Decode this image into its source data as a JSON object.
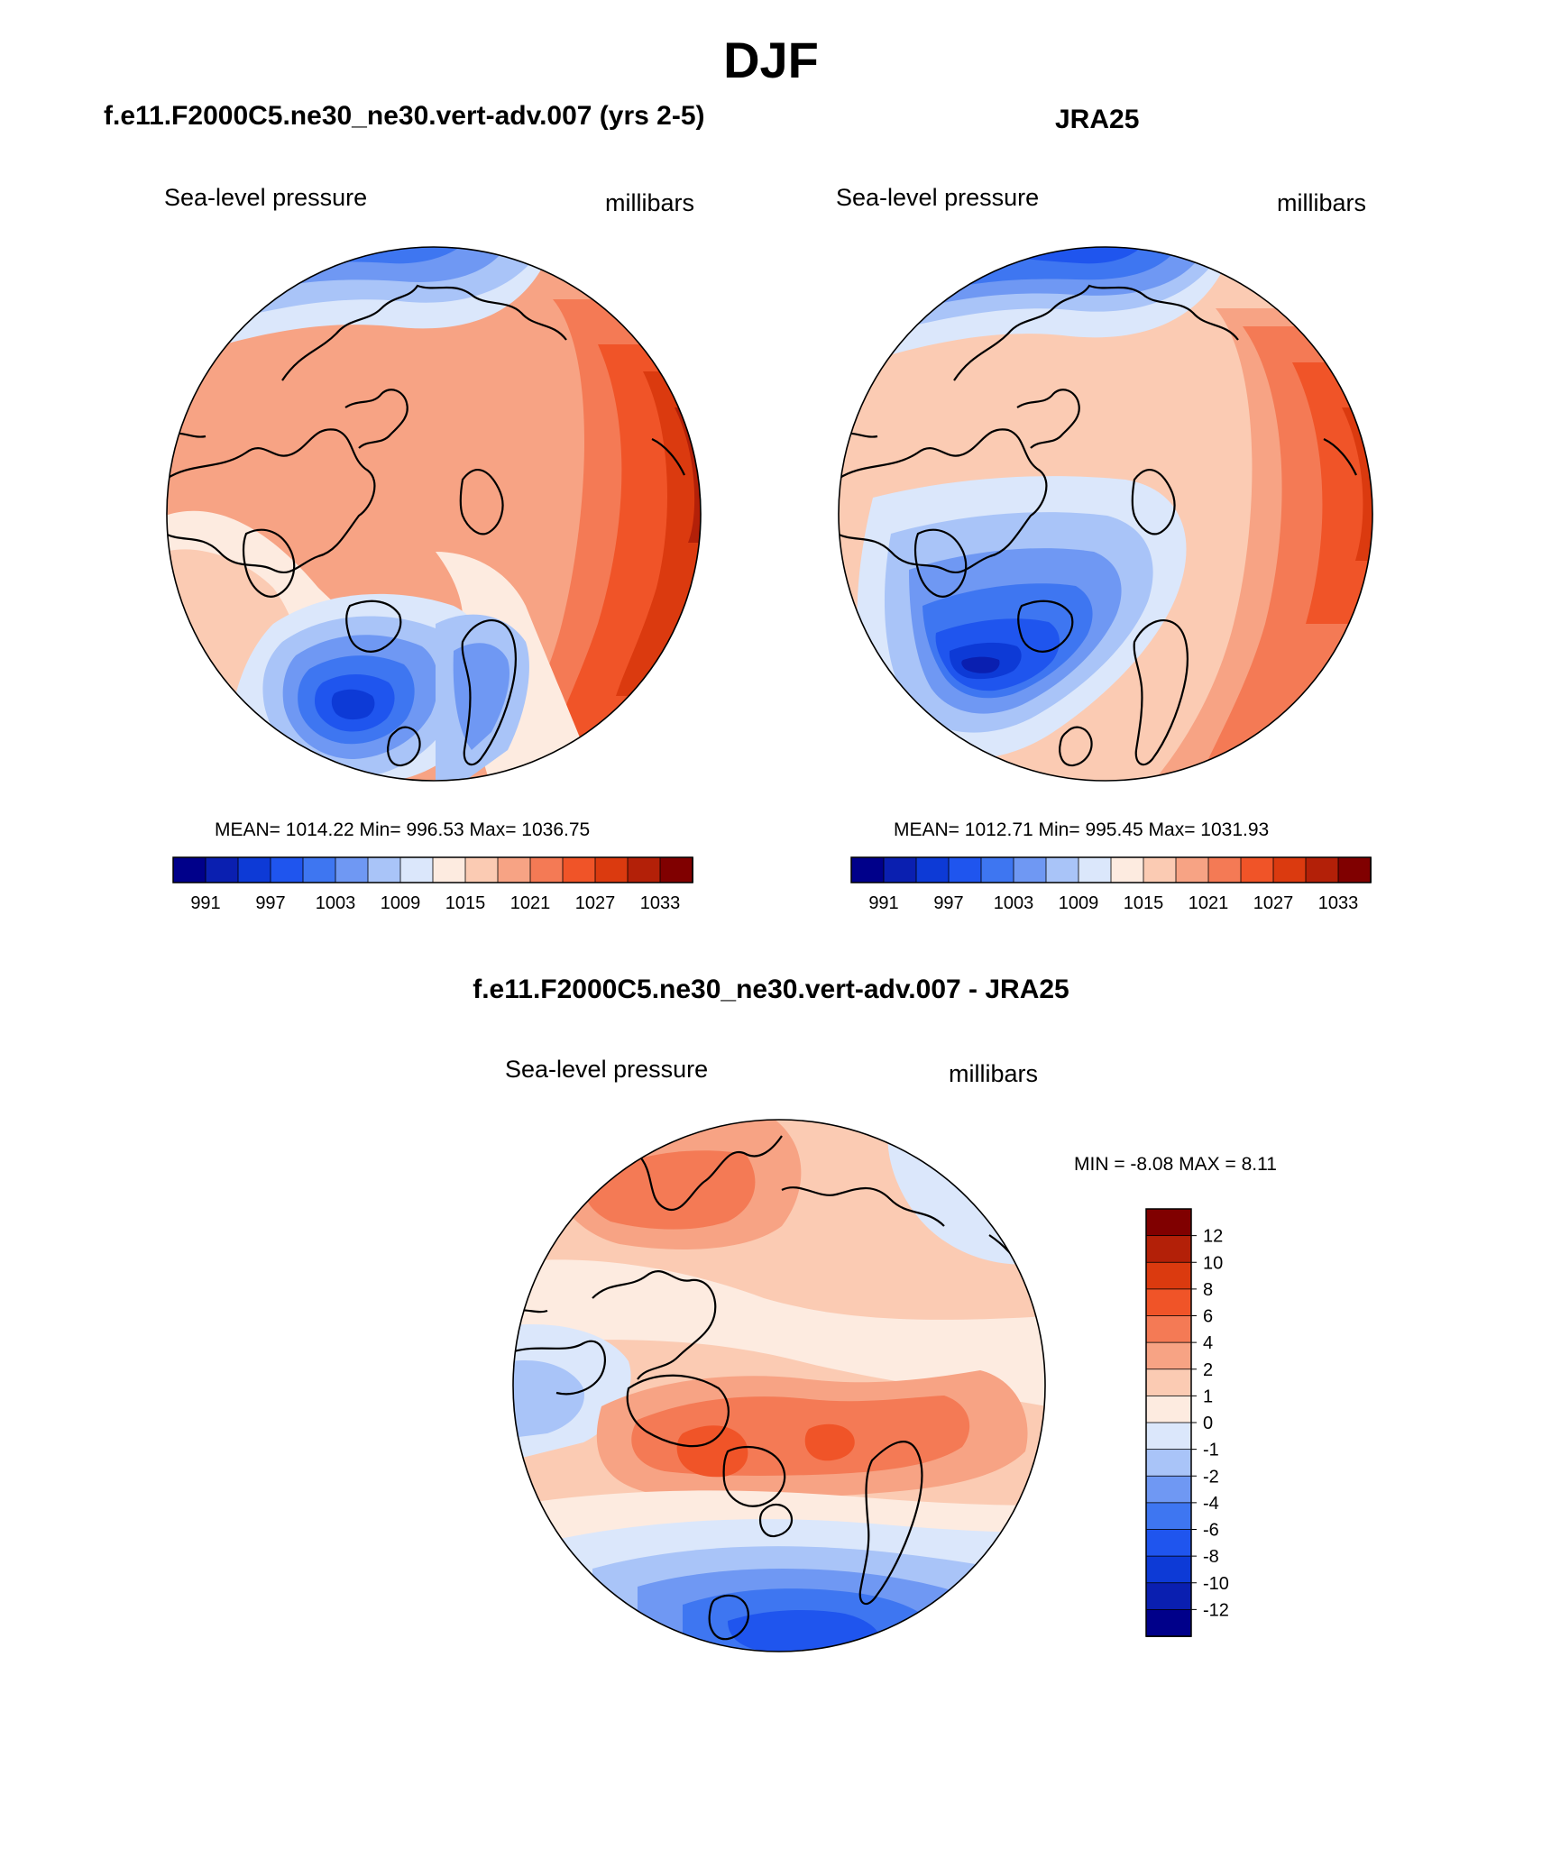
{
  "title": "DJF",
  "panels": [
    {
      "id": "model",
      "title": "f.e11.F2000C5.ne30_ne30.vert-adv.007 (yrs 2-5)",
      "left_label": "Sea-level pressure",
      "right_label": "millibars",
      "stats": "MEAN= 1014.22  Min= 996.53  Max= 1036.75",
      "ticks": [
        "991",
        "997",
        "1003",
        "1009",
        "1015",
        "1021",
        "1027",
        "1033"
      ]
    },
    {
      "id": "obs",
      "title": "JRA25",
      "left_label": "Sea-level pressure",
      "right_label": "millibars",
      "stats": "MEAN= 1012.71  Min= 995.45  Max= 1031.93",
      "ticks": [
        "991",
        "997",
        "1003",
        "1009",
        "1015",
        "1021",
        "1027",
        "1033"
      ]
    },
    {
      "id": "diff",
      "title": "f.e11.F2000C5.ne30_ne30.vert-adv.007 - JRA25",
      "left_label": "Sea-level pressure",
      "right_label": "millibars",
      "stats": "MIN =  -8.08 MAX =   8.11",
      "ticks": [
        "12",
        "10",
        "8",
        "6",
        "4",
        "2",
        "1",
        "0",
        "-1",
        "-2",
        "-4",
        "-6",
        "-8",
        "-10",
        "-12"
      ]
    }
  ],
  "colors": {
    "abs_scale": [
      "#00008a",
      "#0a1fb0",
      "#0d3ad6",
      "#1f55ee",
      "#3e76f1",
      "#6f98f3",
      "#a9c4f8",
      "#dbe7fb",
      "#fdebe0",
      "#fbcbb3",
      "#f7a384",
      "#f47a55",
      "#f05428",
      "#db3a0f",
      "#b32008",
      "#800000"
    ],
    "diff_scale": [
      "#800000",
      "#b32008",
      "#db3a0f",
      "#f05428",
      "#f47a55",
      "#f7a384",
      "#fbcbb3",
      "#fdebe0",
      "#dbe7fb",
      "#a9c4f8",
      "#6f98f3",
      "#3e76f1",
      "#1f55ee",
      "#0d3ad6",
      "#0a1fb0",
      "#00008a"
    ]
  }
}
